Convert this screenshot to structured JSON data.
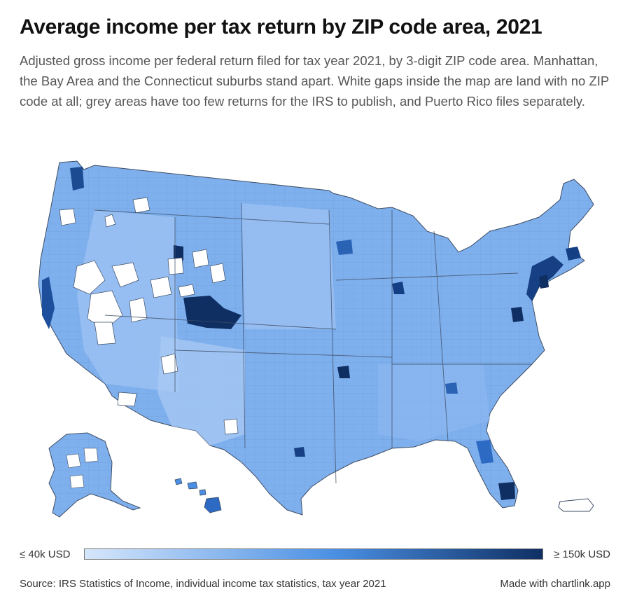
{
  "header": {
    "title": "Average income per tax return by ZIP code area, 2021",
    "subtitle": "Adjusted gross income per federal return filed for tax year 2021, by 3-digit ZIP code area. Manhattan, the Bay Area and the Connecticut suburbs stand apart. White gaps inside the map are land with no ZIP code at all; grey areas have too few returns for the IRS to publish, and Puerto Rico files separately."
  },
  "legend": {
    "min_label": "≤ 40k USD",
    "max_label": "≥ 150k USD",
    "color_low": "#d6e6fb",
    "color_mid": "#4a8fe3",
    "color_high": "#0f2f63"
  },
  "footer": {
    "source": "Source: IRS Statistics of Income, individual income tax statistics, tax year 2021",
    "credit": "Made with chartlink.app"
  },
  "map": {
    "regions": [
      "contiguous-us",
      "alaska",
      "hawaii",
      "puerto-rico"
    ],
    "colors": {
      "fill_default": "#7fb0ee",
      "border": "#3d4c63",
      "no_zip": "#ffffff",
      "dark": "#143f84",
      "darkest": "#0f2f63"
    }
  }
}
